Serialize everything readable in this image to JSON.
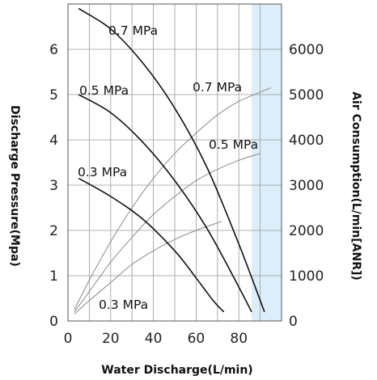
{
  "chart_data": {
    "type": "line",
    "xlabel": "Water Discharge(L/min)",
    "ylabel_left": "Discharge Pressure(Mpa)",
    "ylabel_right": "Air Consumption(L/min[ANR])",
    "xlim": [
      0,
      100
    ],
    "ylim_left": [
      0,
      7
    ],
    "ylim_right": [
      0,
      7000
    ],
    "x_ticks": [
      "0",
      "20",
      "40",
      "60",
      "80"
    ],
    "y_left_ticks": [
      "0",
      "1",
      "2",
      "3",
      "4",
      "5",
      "6"
    ],
    "y_right_ticks": [
      "0",
      "1000",
      "2000",
      "3000",
      "4000",
      "5000",
      "6000"
    ],
    "grid": true,
    "highlight_region_x": [
      86,
      100
    ],
    "highlight_color": "#dbeefa",
    "pressure_curves": [
      {
        "name": "0.7 MPa",
        "x": [
          5,
          20,
          35,
          50,
          65,
          80,
          92
        ],
        "y": [
          6.9,
          6.45,
          5.7,
          4.7,
          3.4,
          1.7,
          0.2
        ]
      },
      {
        "name": "0.5 MPa",
        "x": [
          5,
          20,
          35,
          50,
          65,
          80,
          86
        ],
        "y": [
          5.0,
          4.6,
          3.95,
          3.1,
          2.05,
          0.75,
          0.2
        ]
      },
      {
        "name": "0.3 MPa",
        "x": [
          5,
          20,
          35,
          50,
          60,
          68,
          73
        ],
        "y": [
          3.15,
          2.75,
          2.25,
          1.55,
          0.95,
          0.45,
          0.2
        ]
      }
    ],
    "air_curves": [
      {
        "name": "0.7 MPa",
        "x": [
          3,
          10,
          20,
          30,
          40,
          50,
          60,
          70,
          80,
          95
        ],
        "y": [
          250,
          900,
          1750,
          2500,
          3150,
          3700,
          4150,
          4550,
          4850,
          5150
        ]
      },
      {
        "name": "0.5 MPa",
        "x": [
          3,
          10,
          20,
          30,
          40,
          50,
          60,
          70,
          80,
          90
        ],
        "y": [
          200,
          650,
          1300,
          1850,
          2350,
          2750,
          3100,
          3350,
          3550,
          3700
        ]
      },
      {
        "name": "0.3 MPa",
        "x": [
          3,
          10,
          20,
          30,
          40,
          50,
          60,
          72
        ],
        "y": [
          150,
          450,
          850,
          1250,
          1550,
          1800,
          2000,
          2200
        ]
      }
    ],
    "labels": [
      {
        "text": "0.7 MPa",
        "for": "pressure-0.7"
      },
      {
        "text": "0.5 MPa",
        "for": "pressure-0.5"
      },
      {
        "text": "0.3 MPa",
        "for": "pressure-0.3"
      },
      {
        "text": "0.7 MPa",
        "for": "air-0.7"
      },
      {
        "text": "0.5 MPa",
        "for": "air-0.5"
      },
      {
        "text": "0.3 MPa",
        "for": "air-0.3"
      }
    ]
  }
}
